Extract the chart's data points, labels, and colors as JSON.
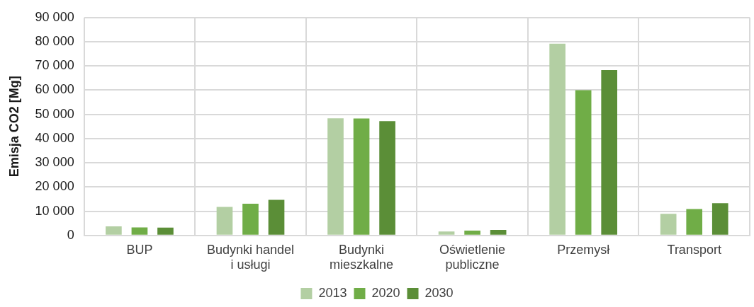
{
  "chart_data": {
    "type": "bar",
    "ylabel": "Emisja CO2 [Mg]",
    "categories": [
      "BUP",
      "Budynki handel i usługi",
      "Budynki mieszkalne",
      "Oświetlenie publiczne",
      "Przemysł",
      "Transport"
    ],
    "series": [
      {
        "name": "2013",
        "color": "#b3cfa3",
        "values": [
          3750,
          11800,
          48400,
          1600,
          79200,
          8900
        ]
      },
      {
        "name": "2020",
        "color": "#70ad47",
        "values": [
          3300,
          13100,
          48300,
          2000,
          60000,
          10900
        ]
      },
      {
        "name": "2030",
        "color": "#5b8e37",
        "values": [
          3200,
          14700,
          47200,
          2250,
          68300,
          13300
        ]
      }
    ],
    "ylim": [
      0,
      90000
    ],
    "yticks": [
      {
        "value": 0,
        "label": "0"
      },
      {
        "value": 10000,
        "label": "10 000"
      },
      {
        "value": 20000,
        "label": "20 000"
      },
      {
        "value": 30000,
        "label": "30 000"
      },
      {
        "value": 40000,
        "label": "40 000"
      },
      {
        "value": 50000,
        "label": "50 000"
      },
      {
        "value": 60000,
        "label": "60 000"
      },
      {
        "value": 70000,
        "label": "70 000"
      },
      {
        "value": 80000,
        "label": "80 000"
      },
      {
        "value": 90000,
        "label": "90 000"
      }
    ],
    "grid": true,
    "legend": "bottom"
  }
}
